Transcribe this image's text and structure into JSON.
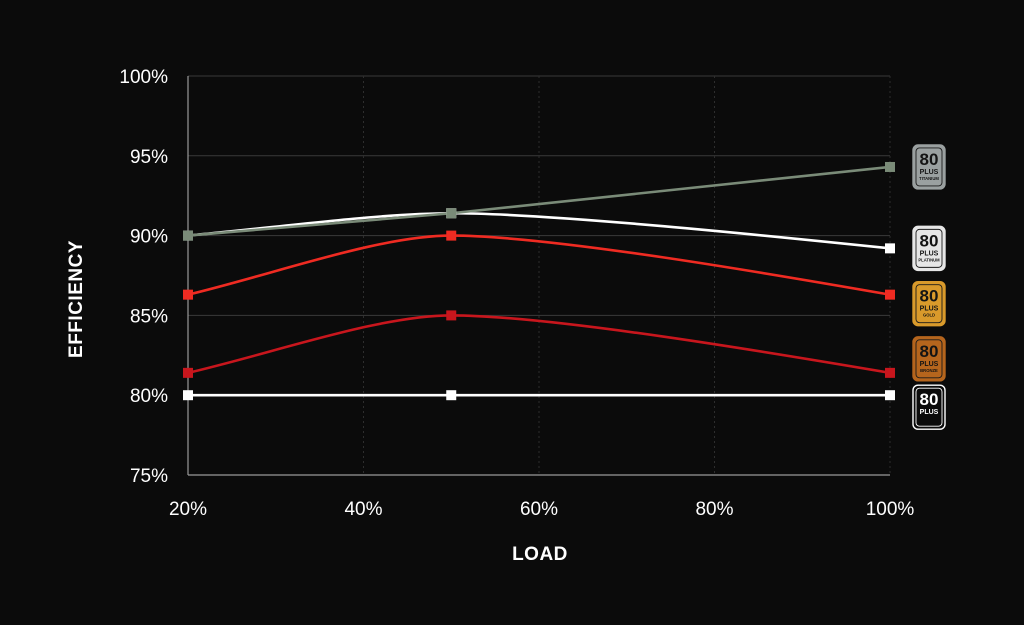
{
  "chart_data": {
    "type": "line",
    "xlabel": "LOAD",
    "ylabel": "EFFICIENCY",
    "xlim": [
      20,
      100
    ],
    "ylim": [
      75,
      100
    ],
    "x_ticks": [
      "20%",
      "40%",
      "60%",
      "80%",
      "100%"
    ],
    "y_ticks": [
      "75%",
      "80%",
      "85%",
      "90%",
      "95%",
      "100%"
    ],
    "grid": true,
    "series": [
      {
        "name": "80 PLUS",
        "badge_sub": "",
        "x": [
          20,
          50,
          100
        ],
        "values": [
          80,
          80,
          80
        ],
        "color": "#ffffff",
        "badge_color": "#ffffff",
        "curved": false
      },
      {
        "name": "80 PLUS BRONZE",
        "badge_sub": "BRONZE",
        "x": [
          20,
          50,
          100
        ],
        "values": [
          81.4,
          85,
          81.4
        ],
        "color": "#c8161d",
        "badge_color": "#b5651d",
        "curved": true
      },
      {
        "name": "80 PLUS GOLD",
        "badge_sub": "GOLD",
        "x": [
          20,
          50,
          100
        ],
        "values": [
          86.3,
          90,
          86.3
        ],
        "color": "#ef2b22",
        "badge_color": "#d99a2b",
        "curved": true
      },
      {
        "name": "80 PLUS PLATINUM",
        "badge_sub": "PLATINUM",
        "x": [
          20,
          50,
          100
        ],
        "values": [
          90,
          91.4,
          89.2
        ],
        "color": "#ffffff",
        "badge_color": "#e6e6e6",
        "curved": true
      },
      {
        "name": "80 PLUS TITANIUM",
        "badge_sub": "TITANIUM",
        "x": [
          20,
          50,
          100
        ],
        "values": [
          90,
          91.4,
          94.3
        ],
        "color": "#7a8b78",
        "badge_color": "#9aa0a0",
        "curved": false
      }
    ],
    "badge_order_top_to_bottom": [
      "80 PLUS TITANIUM",
      "80 PLUS PLATINUM",
      "80 PLUS GOLD",
      "80 PLUS BRONZE",
      "80 PLUS"
    ],
    "badge_text": {
      "number": "80",
      "plus": "PLUS"
    }
  }
}
